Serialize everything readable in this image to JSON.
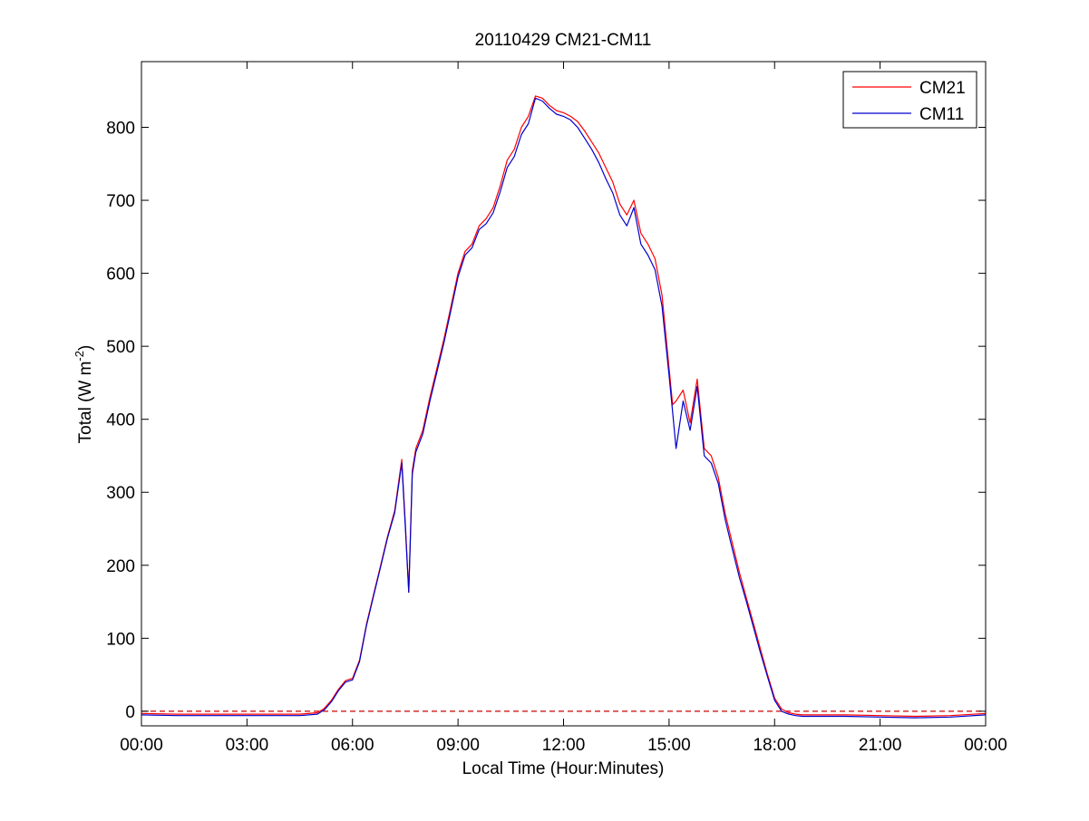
{
  "chart_data": {
    "type": "line",
    "title": "20110429 CM21-CM11",
    "xlabel": "Local Time (Hour:Minutes)",
    "ylabel": {
      "prefix": "Total (W m",
      "superscript": "-2",
      "suffix": ")"
    },
    "xlim": [
      0,
      24
    ],
    "ylim": [
      -20,
      890
    ],
    "x_unit": "hours",
    "grid": false,
    "legend_position": "top-right",
    "x_ticks": [
      {
        "value": 0,
        "label": "00:00"
      },
      {
        "value": 3,
        "label": "03:00"
      },
      {
        "value": 6,
        "label": "06:00"
      },
      {
        "value": 9,
        "label": "09:00"
      },
      {
        "value": 12,
        "label": "12:00"
      },
      {
        "value": 15,
        "label": "15:00"
      },
      {
        "value": 18,
        "label": "18:00"
      },
      {
        "value": 21,
        "label": "21:00"
      },
      {
        "value": 24,
        "label": "00:00"
      }
    ],
    "y_ticks": [
      {
        "value": 0,
        "label": "0"
      },
      {
        "value": 100,
        "label": "100"
      },
      {
        "value": 200,
        "label": "200"
      },
      {
        "value": 300,
        "label": "300"
      },
      {
        "value": 400,
        "label": "400"
      },
      {
        "value": 500,
        "label": "500"
      },
      {
        "value": 600,
        "label": "600"
      },
      {
        "value": 700,
        "label": "700"
      },
      {
        "value": 800,
        "label": "800"
      }
    ],
    "reference_line": {
      "y": 0,
      "style": "dashed",
      "color": "#cc0000"
    },
    "x": [
      0,
      1,
      2,
      3,
      4,
      4.5,
      5.0,
      5.2,
      5.4,
      5.6,
      5.8,
      6.0,
      6.2,
      6.4,
      6.6,
      6.8,
      7.0,
      7.2,
      7.4,
      7.5,
      7.6,
      7.7,
      7.8,
      8.0,
      8.2,
      8.4,
      8.6,
      8.8,
      9.0,
      9.2,
      9.4,
      9.6,
      9.8,
      10.0,
      10.2,
      10.4,
      10.6,
      10.8,
      11.0,
      11.2,
      11.4,
      11.6,
      11.8,
      12.0,
      12.2,
      12.4,
      12.6,
      12.8,
      13.0,
      13.2,
      13.4,
      13.6,
      13.8,
      14.0,
      14.2,
      14.4,
      14.6,
      14.8,
      15.0,
      15.1,
      15.2,
      15.4,
      15.6,
      15.8,
      16.0,
      16.2,
      16.4,
      16.6,
      16.8,
      17.0,
      17.2,
      17.4,
      17.6,
      17.8,
      18.0,
      18.2,
      18.4,
      18.6,
      18.8,
      19.0,
      20.0,
      21.0,
      22.0,
      23.0,
      24.0
    ],
    "series": [
      {
        "name": "CM21",
        "color": "#ff0000",
        "values": [
          -3,
          -4,
          -4,
          -4,
          -4,
          -4,
          -2,
          4,
          15,
          30,
          42,
          45,
          70,
          120,
          160,
          200,
          240,
          275,
          345,
          260,
          163,
          330,
          360,
          385,
          430,
          470,
          510,
          555,
          600,
          630,
          640,
          665,
          675,
          690,
          720,
          755,
          770,
          800,
          815,
          843,
          840,
          830,
          823,
          820,
          815,
          808,
          795,
          780,
          765,
          745,
          725,
          695,
          680,
          700,
          655,
          640,
          620,
          570,
          470,
          420,
          425,
          440,
          395,
          455,
          360,
          350,
          320,
          270,
          230,
          190,
          155,
          120,
          85,
          50,
          18,
          3,
          -2,
          -4,
          -5,
          -5,
          -5,
          -6,
          -7,
          -6,
          -3
        ]
      },
      {
        "name": "CM11",
        "color": "#0000cc",
        "values": [
          -5,
          -6,
          -6,
          -6,
          -6,
          -6,
          -4,
          2,
          13,
          28,
          40,
          43,
          68,
          118,
          158,
          198,
          238,
          272,
          340,
          255,
          163,
          325,
          355,
          380,
          425,
          465,
          505,
          550,
          595,
          625,
          635,
          660,
          668,
          683,
          712,
          745,
          760,
          790,
          805,
          840,
          836,
          826,
          818,
          815,
          810,
          800,
          785,
          770,
          752,
          730,
          710,
          680,
          665,
          690,
          640,
          625,
          605,
          555,
          460,
          410,
          360,
          425,
          385,
          445,
          350,
          340,
          312,
          262,
          222,
          183,
          150,
          115,
          80,
          47,
          15,
          0,
          -4,
          -6,
          -7,
          -7,
          -7,
          -8,
          -9,
          -8,
          -5
        ]
      }
    ]
  }
}
